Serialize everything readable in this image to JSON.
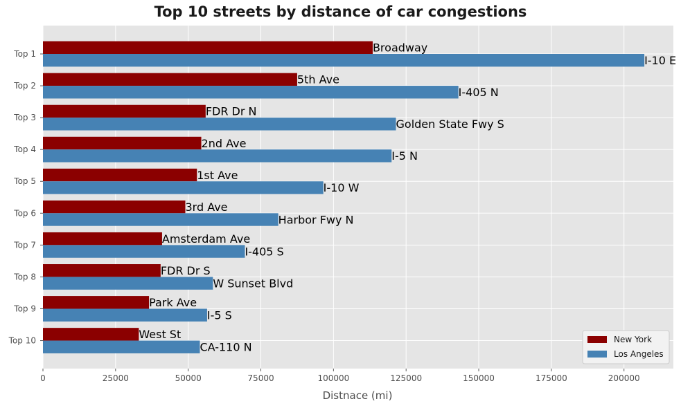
{
  "chart_data": {
    "type": "bar",
    "orientation": "horizontal",
    "title": "Top 10 streets by distance of car congestions",
    "xlabel": "Distnace (mi)",
    "ylabel": "",
    "xlim": [
      0,
      217000
    ],
    "xticks": [
      0,
      25000,
      50000,
      75000,
      100000,
      125000,
      150000,
      175000,
      200000
    ],
    "grid": true,
    "legend_position": "lower-right",
    "categories": [
      "Top 1",
      "Top 2",
      "Top 3",
      "Top 4",
      "Top 5",
      "Top 6",
      "Top 7",
      "Top 8",
      "Top 9",
      "Top 10"
    ],
    "series": [
      {
        "name": "New York",
        "color": "#8b0000",
        "values": [
          113500,
          87500,
          56000,
          54500,
          53000,
          49000,
          41000,
          40500,
          36500,
          33000
        ],
        "labels": [
          "Broadway",
          "5th Ave",
          "FDR Dr N",
          "2nd Ave",
          "1st Ave",
          "3rd Ave",
          "Amsterdam Ave",
          "FDR Dr S",
          "Park Ave",
          "West St"
        ]
      },
      {
        "name": "Los Angeles",
        "color": "#4682b4",
        "values": [
          207000,
          143000,
          121500,
          120000,
          96500,
          81000,
          69500,
          58500,
          56500,
          54000
        ],
        "labels": [
          "I-10 E",
          "I-405 N",
          "Golden State Fwy S",
          "I-5 N",
          "I-10 W",
          "Harbor Fwy N",
          "I-405 S",
          "W Sunset Blvd",
          "I-5 S",
          "CA-110 N"
        ]
      }
    ]
  }
}
